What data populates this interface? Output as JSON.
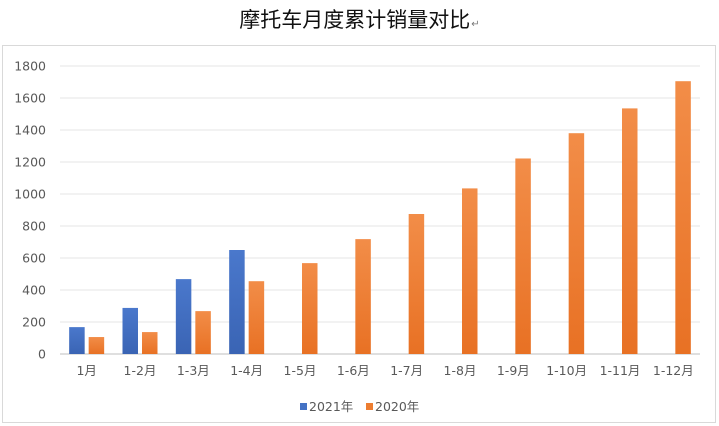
{
  "chart_data": {
    "type": "bar",
    "title": "摩托车月度累计销量对比",
    "title_mark": "↵",
    "categories": [
      "1月",
      "1-2月",
      "1-3月",
      "1-4月",
      "1-5月",
      "1-6月",
      "1-7月",
      "1-8月",
      "1-9月",
      "1-10月",
      "1-11月",
      "1-12月"
    ],
    "series": [
      {
        "name": "2021年",
        "color": "#4472C4",
        "values": [
          168,
          288,
          468,
          650,
          null,
          null,
          null,
          null,
          null,
          null,
          null,
          null
        ]
      },
      {
        "name": "2020年",
        "color": "#ED7D31",
        "values": [
          106,
          137,
          268,
          455,
          568,
          718,
          875,
          1035,
          1222,
          1380,
          1535,
          1705
        ]
      }
    ],
    "ylim": [
      0,
      1800
    ],
    "yticks": [
      0,
      200,
      400,
      600,
      800,
      1000,
      1200,
      1400,
      1600,
      1800
    ],
    "xlabel": "",
    "ylabel": "",
    "grid": true,
    "legend_position": "bottom"
  }
}
